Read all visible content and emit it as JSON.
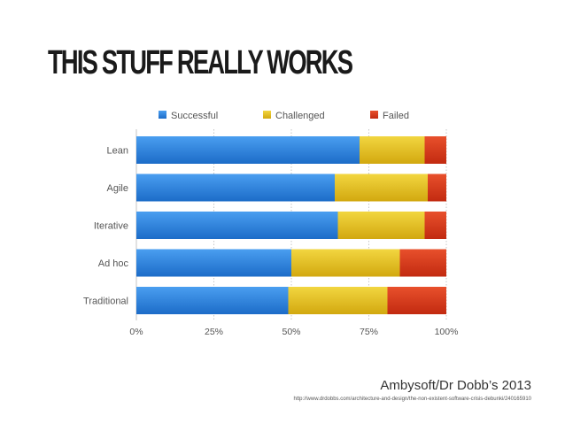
{
  "header": {
    "title": "THIS STUFF REALLY WORKS"
  },
  "footer": {
    "source": "Ambysoft/Dr Dobb’s 2013",
    "url": "http://www.drdobbs.com/architecture-and-design/the-non-existent-software-crisis-debunki/240165910"
  },
  "chart_data": {
    "type": "bar",
    "orientation": "horizontal",
    "stacked": true,
    "categories": [
      "Lean",
      "Agile",
      "Iterative",
      "Ad hoc",
      "Traditional"
    ],
    "series": [
      {
        "name": "Successful",
        "color": "#2b7fd9",
        "values": [
          72,
          64,
          65,
          50,
          49
        ]
      },
      {
        "name": "Challenged",
        "color": "#e6c31f",
        "values": [
          21,
          30,
          28,
          35,
          32
        ]
      },
      {
        "name": "Failed",
        "color": "#d8361a",
        "values": [
          7,
          6,
          7,
          15,
          19
        ]
      }
    ],
    "xlim": [
      0,
      100
    ],
    "xticks": [
      "0%",
      "25%",
      "50%",
      "75%",
      "100%"
    ],
    "grid": true,
    "legend": "top"
  }
}
